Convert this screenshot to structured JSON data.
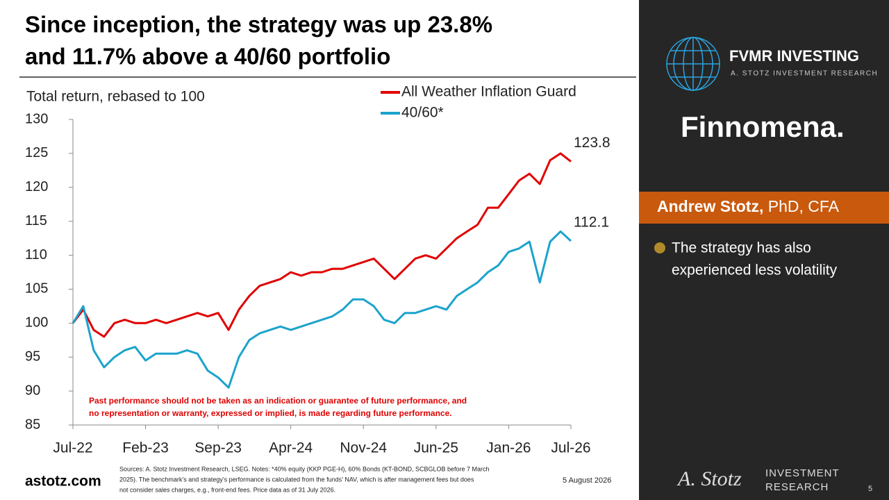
{
  "chart_data": {
    "type": "line",
    "title": [
      "Since inception, the strategy was up 23.8%",
      "and 11.7% above a 40/60 portfolio"
    ],
    "ylabel": "Total return, rebased to 100",
    "categories": [
      "Jul-22",
      null,
      null,
      null,
      null,
      null,
      null,
      "Feb-23",
      null,
      null,
      null,
      null,
      null,
      null,
      "Sep-23",
      null,
      null,
      null,
      null,
      null,
      null,
      "Apr-24",
      null,
      null,
      null,
      null,
      null,
      null,
      "Nov-24",
      null,
      null,
      null,
      null,
      null,
      null,
      "Jun-25",
      null,
      null,
      null,
      null,
      null,
      null,
      "Jan-26",
      null,
      null,
      null,
      null,
      null,
      "Jul-26"
    ],
    "series": [
      {
        "name": "All Weather Inflation Guard",
        "color": "#e00000",
        "values": [
          100,
          102,
          99,
          98,
          100,
          100.5,
          100,
          100,
          100.5,
          100,
          100.5,
          101,
          101.5,
          101,
          101.5,
          99,
          102,
          104,
          105.5,
          106,
          106.5,
          107.5,
          107,
          107.5,
          107.5,
          108,
          108,
          108.5,
          109,
          109.5,
          108,
          106.5,
          108,
          109.5,
          110,
          109.5,
          111,
          112.5,
          113.5,
          114.5,
          117,
          117,
          119,
          121,
          122,
          120.5,
          124,
          125,
          123.8
        ]
      },
      {
        "name": "40/60*",
        "color": "#1ba3cc",
        "values": [
          100,
          102.5,
          96,
          93.5,
          95,
          96,
          96.5,
          94.5,
          95.5,
          95.5,
          95.5,
          96,
          95.5,
          93,
          92,
          90.5,
          95,
          97.5,
          98.5,
          99,
          99.5,
          99,
          99.5,
          100,
          100.5,
          101,
          102,
          103.5,
          103.5,
          102.5,
          100.5,
          100,
          101.5,
          101.5,
          102,
          102.5,
          102,
          104,
          105,
          106,
          107.5,
          108.5,
          110.5,
          111,
          112,
          106,
          112,
          113.5,
          112.1
        ]
      }
    ],
    "ylim": [
      85,
      130
    ],
    "yticks": [
      85,
      90,
      95,
      100,
      105,
      110,
      115,
      120,
      125,
      130
    ],
    "annotations": [
      "Past performance should not be taken as an indication or guarantee of future performance, and",
      "no representation or warranty, expressed or implied, is made regarding future performance."
    ]
  },
  "slide": {
    "website": "astotz.com",
    "sources": [
      "Sources: A. Stotz Investment Research, LSEG. Notes: *40% equity (KKP PGE-H), 60% Bonds (KT-BOND, SCBGLOB before 7 March",
      "2025). The benchmark’s and strategy’s performance is calculated from the funds’ NAV, which is after management fees but does",
      "not consider sales charges, e.g., front-end fees. Price data as of 31 July 2026."
    ],
    "date": "5 August 2026",
    "logo_script": "A. Stotz",
    "logo_text": [
      "INVESTMENT",
      "RESEARCH"
    ],
    "page": "5",
    "brand": "FVMR INVESTING",
    "brand_sub": "A. STOTZ INVESTMENT RESEARCH",
    "partner": "Finnomena.",
    "presenter_name": "Andrew Stotz,",
    "presenter_credentials": "PhD, CFA",
    "bullet": [
      "The strategy has also",
      "experienced less volatility"
    ]
  }
}
